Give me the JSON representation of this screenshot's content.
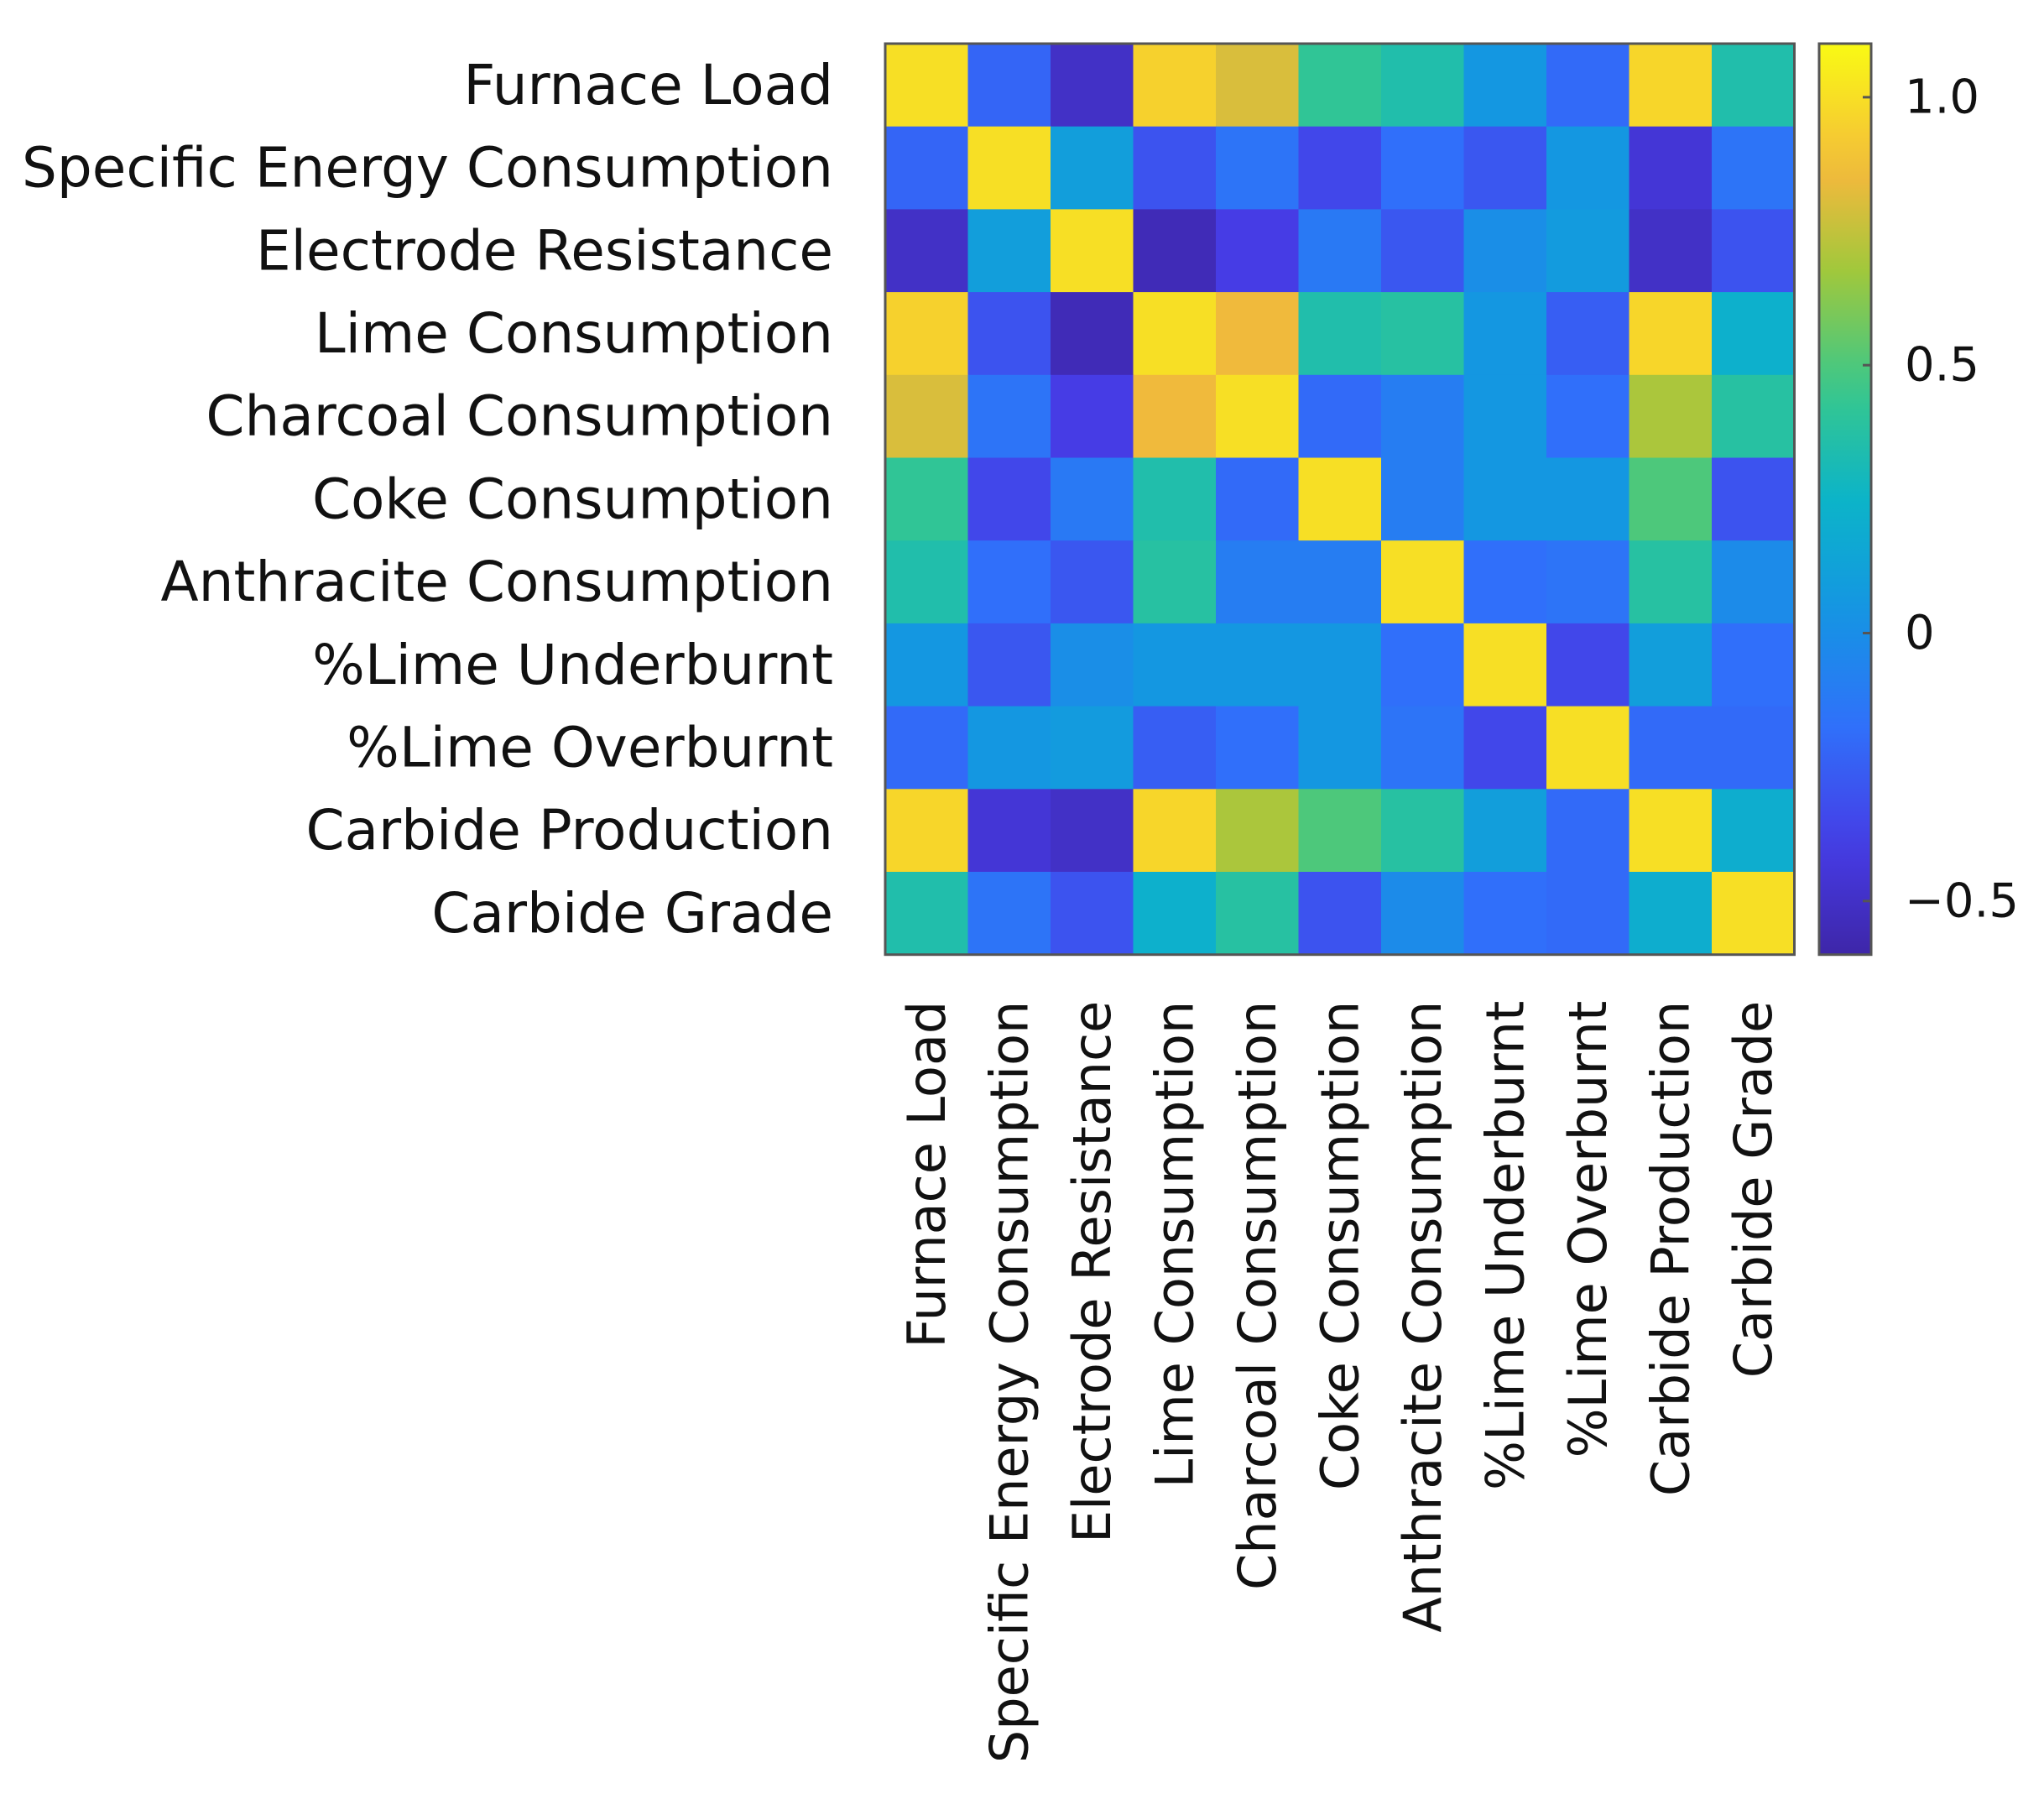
{
  "chart_data": {
    "type": "heatmap",
    "title": "",
    "xlabel": "",
    "ylabel": "",
    "variables": [
      "Furnace Load",
      "Specific Energy Consumption",
      "Electrode Resistance",
      "Lime Consumption",
      "Charcoal Consumption",
      "Coke Consumption",
      "Anthracite Consumption",
      "%Lime Underburnt",
      "%Lime Overburnt",
      "Carbide Production",
      "Carbide Grade"
    ],
    "matrix": [
      [
        1.0,
        -0.22,
        -0.5,
        0.95,
        0.8,
        0.42,
        0.35,
        0.05,
        -0.2,
        0.97,
        0.35
      ],
      [
        -0.22,
        1.0,
        0.1,
        -0.3,
        -0.15,
        -0.35,
        -0.18,
        -0.28,
        0.05,
        -0.45,
        -0.15
      ],
      [
        -0.5,
        0.1,
        1.0,
        -0.55,
        -0.4,
        -0.12,
        -0.28,
        0.0,
        0.08,
        -0.5,
        -0.3
      ],
      [
        0.95,
        -0.3,
        -0.55,
        1.0,
        0.85,
        0.35,
        0.38,
        0.05,
        -0.25,
        0.97,
        0.22
      ],
      [
        0.8,
        -0.15,
        -0.4,
        0.85,
        1.0,
        -0.2,
        -0.1,
        0.05,
        -0.18,
        0.7,
        0.38
      ],
      [
        0.42,
        -0.35,
        -0.12,
        0.35,
        -0.2,
        1.0,
        -0.1,
        0.05,
        0.05,
        0.5,
        -0.3
      ],
      [
        0.35,
        -0.18,
        -0.28,
        0.38,
        -0.1,
        -0.1,
        1.0,
        -0.18,
        -0.15,
        0.38,
        -0.02
      ],
      [
        0.05,
        -0.28,
        0.0,
        0.05,
        0.05,
        0.05,
        -0.18,
        1.0,
        -0.35,
        0.1,
        -0.18
      ],
      [
        -0.2,
        0.05,
        0.08,
        -0.25,
        -0.18,
        0.05,
        -0.15,
        -0.35,
        1.0,
        -0.2,
        -0.2
      ],
      [
        0.97,
        -0.45,
        -0.5,
        0.97,
        0.7,
        0.5,
        0.38,
        0.1,
        -0.2,
        1.0,
        0.2
      ],
      [
        0.35,
        -0.15,
        -0.3,
        0.22,
        0.38,
        -0.3,
        -0.02,
        -0.18,
        -0.2,
        0.2,
        1.0
      ]
    ],
    "colorbar": {
      "min": -0.6,
      "max": 1.1,
      "ticks": [
        {
          "value": 1.0,
          "label": "1.0"
        },
        {
          "value": 0.5,
          "label": "0.5"
        },
        {
          "value": 0,
          "label": "0"
        },
        {
          "value": -0.5,
          "label": "−0.5"
        }
      ]
    },
    "colormap": "parula"
  }
}
